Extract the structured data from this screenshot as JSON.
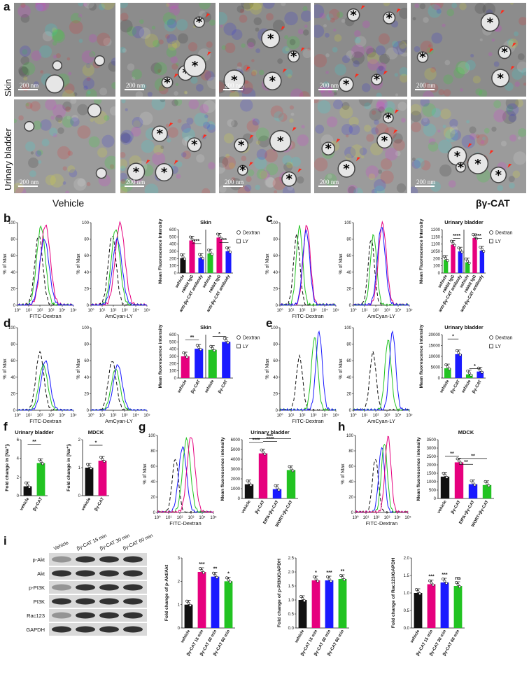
{
  "panel_labels": [
    "a",
    "b",
    "c",
    "d",
    "e",
    "f",
    "g",
    "h",
    "i"
  ],
  "panel_a": {
    "rows": [
      "Skin",
      "Urinary bladder"
    ],
    "scale": [
      "200 nm",
      "200 nm",
      "200 nm",
      "200 nm",
      "200 nm",
      "200 nm",
      "200 nm",
      "200 nm",
      "200 nm",
      "200 nm"
    ],
    "cond_left": "Vehicle",
    "cond_right": "βγ-CAT"
  },
  "flow": {
    "ylabel": "% of Max",
    "yticks": [
      "0",
      "20",
      "40",
      "60",
      "80",
      "100"
    ],
    "xticks": [
      "10⁰",
      "10¹",
      "10²",
      "10³",
      "10⁴",
      "10⁵"
    ],
    "fitc": "FITC-Dextran",
    "amcyan": "AmCyan-LY"
  },
  "legend": {
    "dextran": "Dextran",
    "ly": "LY"
  },
  "chart_data": [
    {
      "panel": "b",
      "type": "bar",
      "title": "Skin",
      "ylabel": "Mean Fluorescence Intensity",
      "ylim": [
        0,
        600
      ],
      "yticks": [
        "0",
        "100",
        "200",
        "300",
        "400",
        "500",
        "600"
      ],
      "categories": [
        "vehicle",
        "rabbit IgG",
        "anti-βγ-CAT antibody",
        "vehicle",
        "rabbit IgG",
        "anti-βγ-CAT antibody"
      ],
      "values": [
        205,
        450,
        210,
        270,
        490,
        300
      ],
      "sig": [
        "***",
        "***"
      ]
    },
    {
      "panel": "c",
      "type": "bar",
      "title": "Urinary bladder",
      "ylabel": "Mean Fluorescence Intensity",
      "ylim": [
        0,
        1200
      ],
      "yticks": [
        "0",
        "100",
        "200",
        "1050",
        "1100",
        "1150",
        "1200"
      ],
      "categories": [
        "vehicle",
        "rabbit IgG",
        "anti-βγ-CAT antibody",
        "vehicle",
        "rabbit IgG",
        "anti-βγ-CAT antibody"
      ],
      "values": [
        1020,
        1110,
        1070,
        1005,
        1150,
        1075
      ],
      "sig": [
        "****",
        "***"
      ]
    },
    {
      "panel": "d",
      "type": "bar",
      "title": "Skin",
      "ylabel": "Mean fluorescence intensity",
      "ylim": [
        0,
        600
      ],
      "yticks": [
        "0",
        "100",
        "200",
        "300",
        "400",
        "500",
        "600"
      ],
      "categories": [
        "vehicle",
        "βγ-CAT",
        "vehicle",
        "βγ-CAT"
      ],
      "values": [
        300,
        405,
        390,
        500
      ],
      "sig": [
        "**",
        "*"
      ]
    },
    {
      "panel": "e",
      "type": "bar",
      "title": "Urinary bladder",
      "ylabel": "Mean fluorescence intensity",
      "ylim": [
        0,
        20000
      ],
      "yticks": [
        "0",
        "5000",
        "10000",
        "15000",
        "20000"
      ],
      "categories": [
        "vehicle",
        "βγ-CAT",
        "vehicle",
        "βγ-CAT"
      ],
      "values": [
        4500,
        11000,
        1700,
        3000
      ],
      "sig": [
        "*",
        "*"
      ]
    },
    {
      "panel": "f1",
      "type": "bar",
      "title": "Urinary bladder",
      "ylabel": "Fold change in [Na⁺]ᵢ",
      "ylim": [
        0,
        6
      ],
      "yticks": [
        "0",
        "2",
        "4",
        "6"
      ],
      "categories": [
        "vehicle",
        "βγ-CAT"
      ],
      "values": [
        1,
        3.5
      ],
      "sig": [
        "**"
      ]
    },
    {
      "panel": "f2",
      "type": "bar",
      "title": "MDCK",
      "ylabel": "Fold change in [Na⁺]ᵢ",
      "ylim": [
        0,
        2
      ],
      "yticks": [
        "0",
        "1",
        "2"
      ],
      "categories": [
        "vehicle",
        "βγ-CAT"
      ],
      "values": [
        1,
        1.25
      ],
      "sig": [
        "*"
      ]
    },
    {
      "panel": "g",
      "type": "bar",
      "title": "Urinary bladder",
      "ylabel": "Mean fluorescence intensity",
      "ylim": [
        0,
        6000
      ],
      "yticks": [
        "0",
        "1000",
        "2000",
        "3000",
        "4000",
        "5000",
        "6000"
      ],
      "categories": [
        "vehicle",
        "βγ-CAT",
        "EIPA+βγ-CAT",
        "WORT+βγ-CAT"
      ],
      "values": [
        1450,
        4600,
        950,
        2900
      ],
      "sig": [
        "****",
        "****",
        "***"
      ]
    },
    {
      "panel": "h",
      "type": "bar",
      "title": "MDCK",
      "ylabel": "Mean fluorescence intensity",
      "ylim": [
        0,
        3500
      ],
      "yticks": [
        "0",
        "500",
        "1000",
        "1500",
        "2000",
        "2500",
        "3000",
        "3500"
      ],
      "categories": [
        "vehicle",
        "βγ-CAT",
        "EIPA+βγ-CAT",
        "WORT+βγ-CAT"
      ],
      "values": [
        1300,
        2150,
        850,
        800
      ],
      "sig": [
        "**",
        "**",
        "**"
      ]
    },
    {
      "panel": "i1",
      "type": "bar",
      "ylabel": "Fold change of p-Akt/Akt",
      "ylim": [
        0,
        3
      ],
      "yticks": [
        "0",
        "1",
        "2",
        "3"
      ],
      "categories": [
        "vehicle",
        "βγ-CAT 15 min",
        "βγ-CAT 30 min",
        "βγ-CAT 60 min"
      ],
      "values": [
        1,
        2.4,
        2.2,
        2.0
      ],
      "sig": [
        "***",
        "**",
        "*"
      ]
    },
    {
      "panel": "i2",
      "type": "bar",
      "ylabel": "Fold change of p-PI3K/GAPDH",
      "ylim": [
        0,
        2.5
      ],
      "yticks": [
        "0.0",
        "0.5",
        "1.0",
        "1.5",
        "2.0",
        "2.5"
      ],
      "categories": [
        "vehicle",
        "βγ-CAT 15 min",
        "βγ-CAT 30 min",
        "βγ-CAT 60 min"
      ],
      "values": [
        1,
        1.7,
        1.7,
        1.75
      ],
      "sig": [
        "*",
        "***",
        "**"
      ]
    },
    {
      "panel": "i3",
      "type": "bar",
      "ylabel": "Fold change of Rac123/GAPDH",
      "ylim": [
        0,
        2.0
      ],
      "yticks": [
        "0.0",
        "0.5",
        "1.0",
        "1.5",
        "2.0"
      ],
      "categories": [
        "vehicle",
        "βγ-CAT 15 min",
        "βγ-CAT 30 min",
        "βγ-CAT 60 min"
      ],
      "values": [
        1,
        1.25,
        1.3,
        1.2
      ],
      "sig": [
        "***",
        "***",
        "ns"
      ]
    }
  ],
  "blot": {
    "header": [
      "Vehicle",
      "βγ-CAT  15 min",
      "βγ-CAT  30 min",
      "βγ-CAT  60 min"
    ],
    "rows": [
      "p-Akt",
      "Akt",
      "p-PI3K",
      "PI3K",
      "Rac123",
      "GAPDH"
    ]
  },
  "colors": {
    "black": "#111111",
    "magenta": "#e6007e",
    "blue": "#1a1aff",
    "green": "#22c322",
    "em": "#9a9a9a",
    "arrow": "#ff2a1a"
  }
}
